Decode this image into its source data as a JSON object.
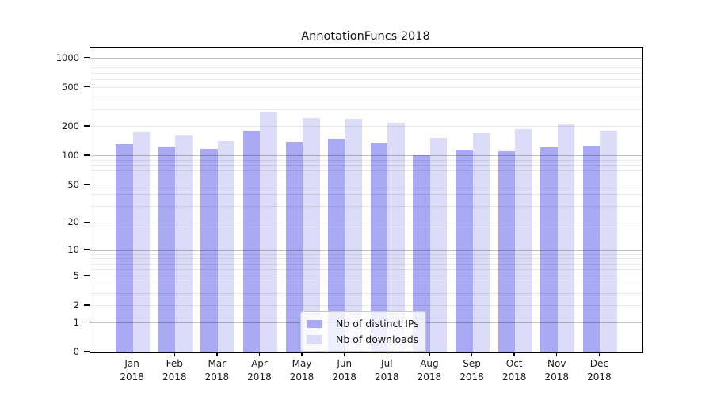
{
  "chart_data": {
    "type": "bar",
    "title": "AnnotationFuncs 2018",
    "categories": [
      "Jan",
      "Feb",
      "Mar",
      "Apr",
      "May",
      "Jun",
      "Jul",
      "Aug",
      "Sep",
      "Oct",
      "Nov",
      "Dec"
    ],
    "x_year_label": "2018",
    "series": [
      {
        "name": "Nb of distinct IPs",
        "color": "#a9a9f4",
        "values": [
          133,
          125,
          118,
          182,
          139,
          150,
          137,
          101,
          116,
          112,
          123,
          128
        ]
      },
      {
        "name": "Nb of downloads",
        "color": "#dcdcf8",
        "values": [
          176,
          163,
          143,
          285,
          244,
          240,
          218,
          153,
          171,
          189,
          211,
          182
        ]
      }
    ],
    "y_scale": "log10(value+1)",
    "y_ticks": [
      1000,
      500,
      200,
      100,
      50,
      20,
      10,
      5,
      2,
      1,
      0
    ],
    "y_axis_top_value": 1287,
    "ylim": [
      0,
      1287
    ],
    "grid": true,
    "legend_position": "inside-bottom-center"
  },
  "colors": {
    "background": "#ffffff",
    "bar_distinct_ips": "#a9a9f4",
    "bar_downloads": "#dcdcf8",
    "grid_major": "#c2c2c2",
    "grid_minor": "#e9e9e9",
    "axis": "#000000",
    "text": "#1a1a1a",
    "legend_border": "#c9c9c9"
  }
}
